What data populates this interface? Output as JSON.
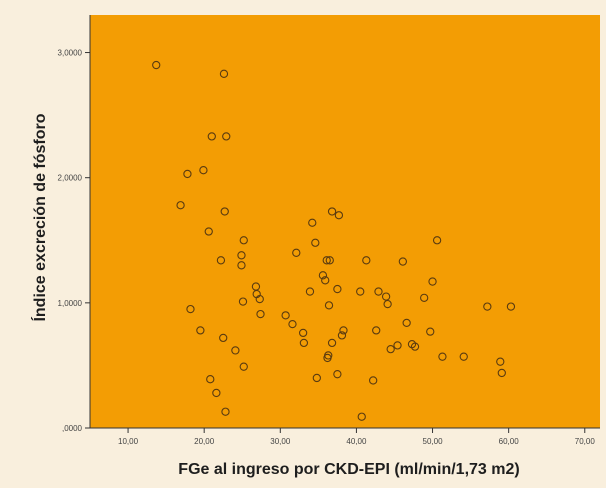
{
  "colors": {
    "background": "#f9efdd",
    "plot_area": "#f39d04",
    "marker": "#5a3b10",
    "axis": "#333333"
  },
  "chart_data": {
    "type": "scatter",
    "title": "",
    "xlabel": "FGe al ingreso por CKD-EPI (ml/min/1,73 m2)",
    "ylabel": "Índice excreción de fósforo",
    "xlim": [
      5,
      72
    ],
    "ylim": [
      0,
      3.3
    ],
    "x_ticks": [
      10,
      20,
      30,
      40,
      50,
      60,
      70
    ],
    "x_tick_labels": [
      "10,00",
      "20,00",
      "30,00",
      "40,00",
      "50,00",
      "60,00",
      "70,00"
    ],
    "y_ticks": [
      0,
      1,
      2,
      3
    ],
    "y_tick_labels": [
      ",0000",
      "1,0000",
      "2,0000",
      "3,0000"
    ],
    "grid": false,
    "legend": "none",
    "marker": "open-circle",
    "points": [
      [
        13.7,
        2.9
      ],
      [
        22.6,
        2.83
      ],
      [
        22.9,
        2.33
      ],
      [
        21.0,
        2.33
      ],
      [
        19.9,
        2.06
      ],
      [
        17.8,
        2.03
      ],
      [
        16.9,
        1.78
      ],
      [
        22.7,
        1.73
      ],
      [
        20.6,
        1.57
      ],
      [
        25.2,
        1.5
      ],
      [
        24.9,
        1.38
      ],
      [
        22.2,
        1.34
      ],
      [
        24.9,
        1.3
      ],
      [
        18.2,
        0.95
      ],
      [
        19.5,
        0.78
      ],
      [
        22.5,
        0.72
      ],
      [
        24.1,
        0.62
      ],
      [
        25.1,
        1.01
      ],
      [
        25.2,
        0.49
      ],
      [
        20.8,
        0.39
      ],
      [
        21.6,
        0.28
      ],
      [
        22.8,
        0.13
      ],
      [
        26.8,
        1.13
      ],
      [
        26.9,
        1.07
      ],
      [
        27.3,
        1.03
      ],
      [
        27.4,
        0.91
      ],
      [
        30.7,
        0.9
      ],
      [
        31.6,
        0.83
      ],
      [
        32.1,
        1.4
      ],
      [
        33.0,
        0.76
      ],
      [
        33.1,
        0.68
      ],
      [
        34.2,
        1.64
      ],
      [
        34.6,
        1.48
      ],
      [
        34.8,
        0.4
      ],
      [
        33.9,
        1.09
      ],
      [
        35.6,
        1.22
      ],
      [
        35.9,
        1.18
      ],
      [
        36.1,
        1.34
      ],
      [
        36.5,
        1.34
      ],
      [
        36.8,
        1.73
      ],
      [
        37.5,
        1.11
      ],
      [
        37.7,
        1.7
      ],
      [
        36.4,
        0.98
      ],
      [
        36.3,
        0.58
      ],
      [
        36.2,
        0.56
      ],
      [
        36.8,
        0.68
      ],
      [
        37.5,
        0.43
      ],
      [
        38.1,
        0.74
      ],
      [
        38.3,
        0.78
      ],
      [
        40.5,
        1.09
      ],
      [
        41.3,
        1.34
      ],
      [
        40.7,
        0.09
      ],
      [
        42.2,
        0.38
      ],
      [
        42.6,
        0.78
      ],
      [
        42.9,
        1.09
      ],
      [
        43.9,
        1.05
      ],
      [
        44.1,
        0.99
      ],
      [
        44.5,
        0.63
      ],
      [
        45.4,
        0.66
      ],
      [
        46.1,
        1.33
      ],
      [
        46.6,
        0.84
      ],
      [
        47.3,
        0.67
      ],
      [
        47.7,
        0.65
      ],
      [
        48.9,
        1.04
      ],
      [
        49.7,
        0.77
      ],
      [
        50.0,
        1.17
      ],
      [
        50.6,
        1.5
      ],
      [
        51.3,
        0.57
      ],
      [
        54.1,
        0.57
      ],
      [
        57.2,
        0.97
      ],
      [
        58.9,
        0.53
      ],
      [
        59.1,
        0.44
      ],
      [
        60.3,
        0.97
      ]
    ]
  }
}
